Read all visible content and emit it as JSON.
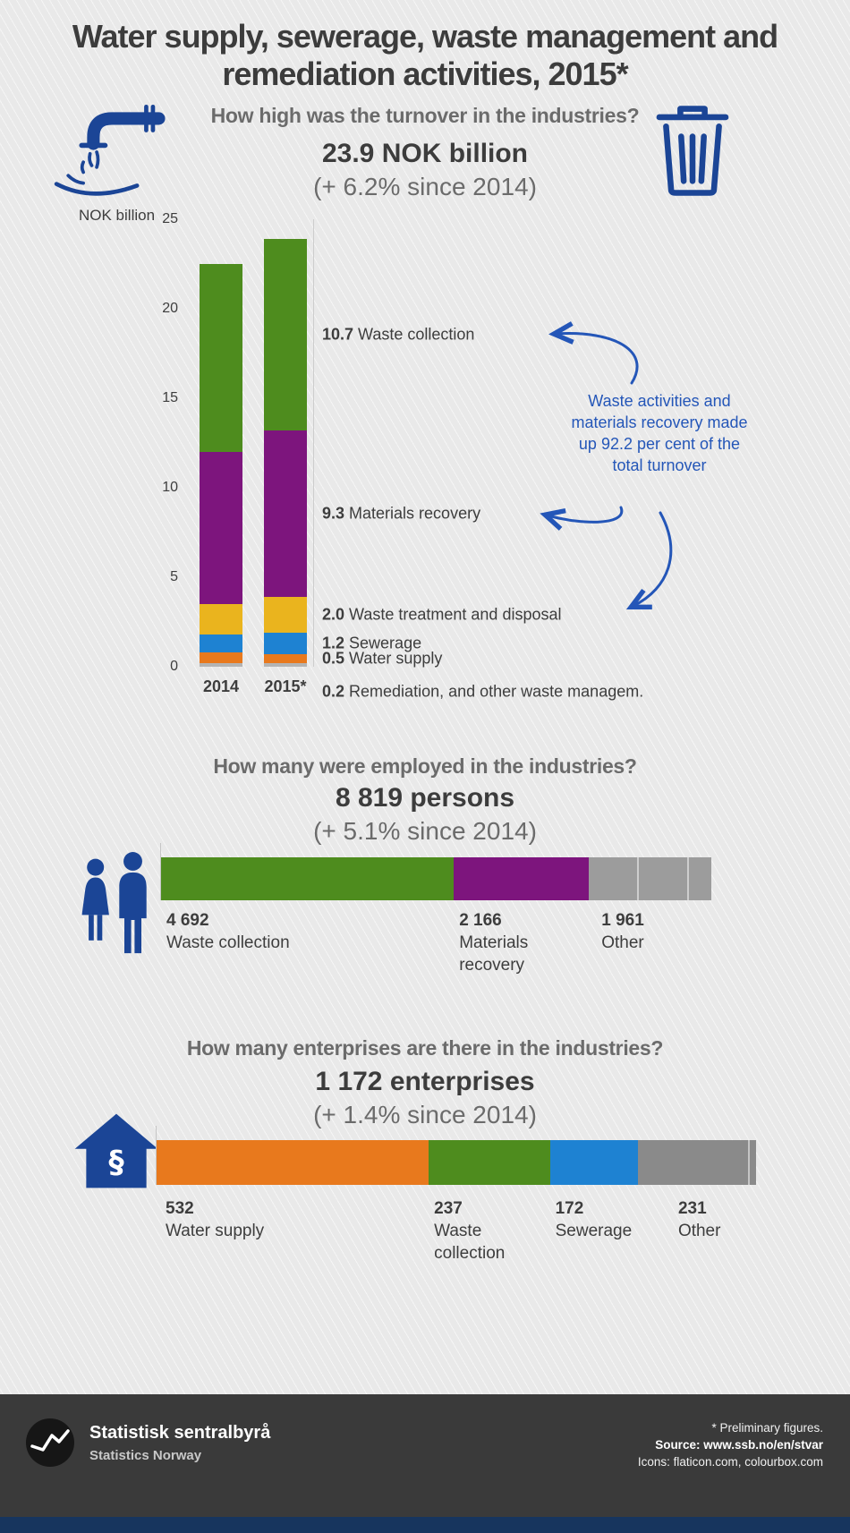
{
  "title": "Water supply, sewerage, waste management and remediation activities, 2015*",
  "colors": {
    "waste_collection": "#4e8c1e",
    "materials_recovery": "#7d157d",
    "waste_treatment": "#eab41e",
    "sewerage": "#1e82d2",
    "water_supply": "#e8791d",
    "other_gray": "#9c9c9c",
    "remediation_gray": "#b4b4b4",
    "icon_blue": "#1b4596",
    "annotation_blue": "#2456b8",
    "footer_bg": "#3a3a3a",
    "bottom_strip": "#17355e"
  },
  "icons": {
    "water_pipe": "water-pipe-icon",
    "trash_can": "trash-can-icon",
    "persons": "persons-icon",
    "house_paragraph": "house-paragraph-icon",
    "ssb_logo": "ssb-logo-icon"
  },
  "turnover": {
    "question": "How high was the turnover in the industries?",
    "headline": "23.9 NOK billion",
    "change": "(+ 6.2% since 2014)",
    "axis_label": "NOK billion",
    "annotation": "Waste activities and materials recovery made up 92.2 per cent of the total turnover"
  },
  "employment": {
    "question": "How many were employed in the industries?",
    "headline": "8 819 persons",
    "change": "(+ 5.1% since 2014)"
  },
  "enterprises": {
    "question": "How many enterprises are there in the industries?",
    "headline": "1 172 enterprises",
    "change": "(+ 1.4% since 2014)"
  },
  "footer": {
    "org_name": "Statistisk sentralbyrå",
    "org_name_en": "Statistics Norway",
    "note": "* Preliminary figures.",
    "source": "Source: www.ssb.no/en/stvar",
    "icons_credit": "Icons: flaticon.com, colourbox.com"
  },
  "chart_data": [
    {
      "type": "bar",
      "stacked": true,
      "orientation": "vertical",
      "title": "How high was the turnover in the industries?",
      "categories": [
        "2014",
        "2015*"
      ],
      "xlabel": "",
      "ylabel": "NOK billion",
      "ylim": [
        0,
        25
      ],
      "yticks": [
        0,
        5,
        10,
        15,
        20,
        25
      ],
      "series": [
        {
          "name": "Remediation, and other waste managem.",
          "color": "#b4b4b4",
          "values": [
            0.2,
            0.2
          ]
        },
        {
          "name": "Water supply",
          "color": "#e8791d",
          "values": [
            0.6,
            0.5
          ]
        },
        {
          "name": "Sewerage",
          "color": "#1e82d2",
          "values": [
            1.0,
            1.2
          ]
        },
        {
          "name": "Waste treatment and disposal",
          "color": "#eab41e",
          "values": [
            1.7,
            2.0
          ]
        },
        {
          "name": "Materials recovery",
          "color": "#7d157d",
          "values": [
            8.5,
            9.3
          ]
        },
        {
          "name": "Waste collection",
          "color": "#4e8c1e",
          "values": [
            10.5,
            10.7
          ]
        }
      ]
    },
    {
      "type": "bar",
      "stacked": true,
      "orientation": "horizontal",
      "title": "How many were employed in the industries?",
      "total": 8819,
      "segments": [
        {
          "label": "Waste collection",
          "value": 4692,
          "display": "4 692",
          "color": "#4e8c1e"
        },
        {
          "label": "Materials recovery",
          "value": 2166,
          "display": "2 166",
          "color": "#7d157d",
          "label_width": 105
        },
        {
          "label": "Other",
          "value": 1961,
          "display": "1 961",
          "color": "#9c9c9c",
          "label_offset": 14,
          "dividers": [
            0.39,
            0.8
          ]
        }
      ]
    },
    {
      "type": "bar",
      "stacked": true,
      "orientation": "horizontal",
      "title": "How many enterprises are there in the industries?",
      "total": 1172,
      "segments": [
        {
          "label": "Water supply",
          "value": 532,
          "display": "532",
          "color": "#e8791d",
          "label_offset": 10
        },
        {
          "label": "Waste collection",
          "value": 237,
          "display": "237",
          "color": "#4e8c1e",
          "label_width": 95
        },
        {
          "label": "Sewerage",
          "value": 172,
          "display": "172",
          "color": "#1e82d2"
        },
        {
          "label": "Other",
          "value": 231,
          "display": "231",
          "color": "#8a8a8a",
          "label_offset": 45,
          "dividers": [
            0.93
          ]
        }
      ]
    }
  ]
}
